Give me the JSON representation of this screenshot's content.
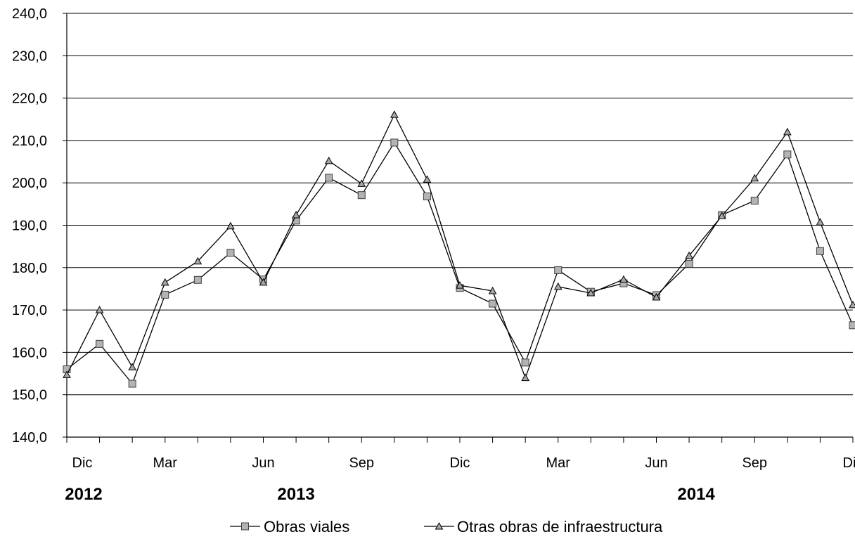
{
  "chart_data": {
    "type": "line",
    "y_ticks": [
      "140,0",
      "150,0",
      "160,0",
      "170,0",
      "180,0",
      "190,0",
      "200,0",
      "210,0",
      "220,0",
      "230,0",
      "240,0"
    ],
    "ylim": [
      140,
      240
    ],
    "x_tick_labels": [
      "Dic",
      "Mar",
      "Jun",
      "Sep",
      "Dic",
      "Mar",
      "Jun",
      "Sep",
      "Dic"
    ],
    "year_labels": [
      "2012",
      "2013",
      "2014"
    ],
    "grid": true,
    "legend_position": "bottom",
    "series": [
      {
        "name": "Obras viales",
        "marker": "square",
        "values": [
          156.0,
          162.0,
          152.6,
          173.6,
          177.1,
          183.5,
          177.2,
          191.1,
          201.2,
          197.1,
          209.5,
          196.8,
          175.2,
          171.5,
          157.6,
          179.4,
          174.3,
          176.3,
          173.5,
          180.9,
          192.4,
          195.8,
          206.7,
          183.9,
          166.4
        ]
      },
      {
        "name": "Otras obras de infraestructura",
        "marker": "triangle",
        "values": [
          154.7,
          170.0,
          156.5,
          176.5,
          181.5,
          189.8,
          176.5,
          192.4,
          205.2,
          199.8,
          216.1,
          200.8,
          175.8,
          174.5,
          154.0,
          175.5,
          174.0,
          177.2,
          173.0,
          182.8,
          192.2,
          201.1,
          212.0,
          190.7,
          171.2
        ]
      }
    ],
    "colors": {
      "square_fill": "#b3b3b3",
      "triangle_fill": "#a6a6a6",
      "line": "#000000",
      "grid": "#000000"
    }
  }
}
